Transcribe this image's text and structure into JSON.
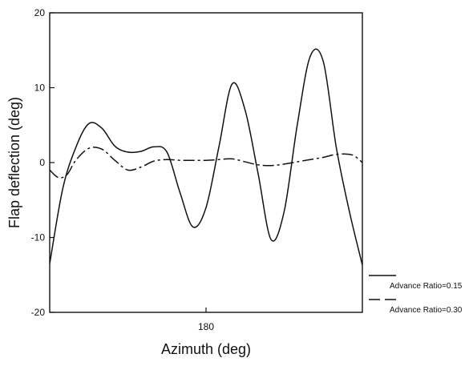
{
  "chart_data": {
    "type": "line",
    "title": "",
    "xlabel": "Azimuth (deg)",
    "ylabel": "Flap deflection (deg)",
    "xlim": [
      0,
      360
    ],
    "ylim": [
      -20,
      20
    ],
    "x_ticks": [
      180
    ],
    "y_ticks": [
      20,
      10,
      0,
      -10,
      -20
    ],
    "grid": false,
    "legend_position": "bottom-right, outside plot",
    "series": [
      {
        "name": "Advance Ratio=0.15",
        "line_style": "solid",
        "color": "#111111",
        "x": [
          0,
          15,
          30,
          45,
          60,
          75,
          90,
          105,
          120,
          135,
          150,
          165,
          180,
          195,
          210,
          225,
          240,
          255,
          270,
          285,
          300,
          315,
          330,
          345,
          360
        ],
        "y": [
          -13.5,
          -3.5,
          2.0,
          5.2,
          4.6,
          2.2,
          1.4,
          1.5,
          2.1,
          1.4,
          -4.0,
          -8.6,
          -6.0,
          2.2,
          10.5,
          7.0,
          -1.5,
          -10.3,
          -6.5,
          5.0,
          14.2,
          13.5,
          2.0,
          -6.5,
          -13.7
        ]
      },
      {
        "name": "Advance Ratio=0.30",
        "line_style": "dashed",
        "color": "#111111",
        "x": [
          0,
          10,
          20,
          30,
          45,
          60,
          75,
          90,
          105,
          120,
          135,
          150,
          165,
          180,
          195,
          210,
          225,
          240,
          255,
          270,
          285,
          300,
          315,
          330,
          345,
          352,
          360
        ],
        "y": [
          -1.0,
          -2.0,
          -1.6,
          0.3,
          1.9,
          1.8,
          0.3,
          -1.0,
          -0.6,
          0.2,
          0.4,
          0.3,
          0.3,
          0.3,
          0.4,
          0.5,
          0.1,
          -0.3,
          -0.4,
          -0.2,
          0.1,
          0.4,
          0.7,
          1.1,
          1.1,
          0.8,
          0.0
        ]
      }
    ]
  }
}
